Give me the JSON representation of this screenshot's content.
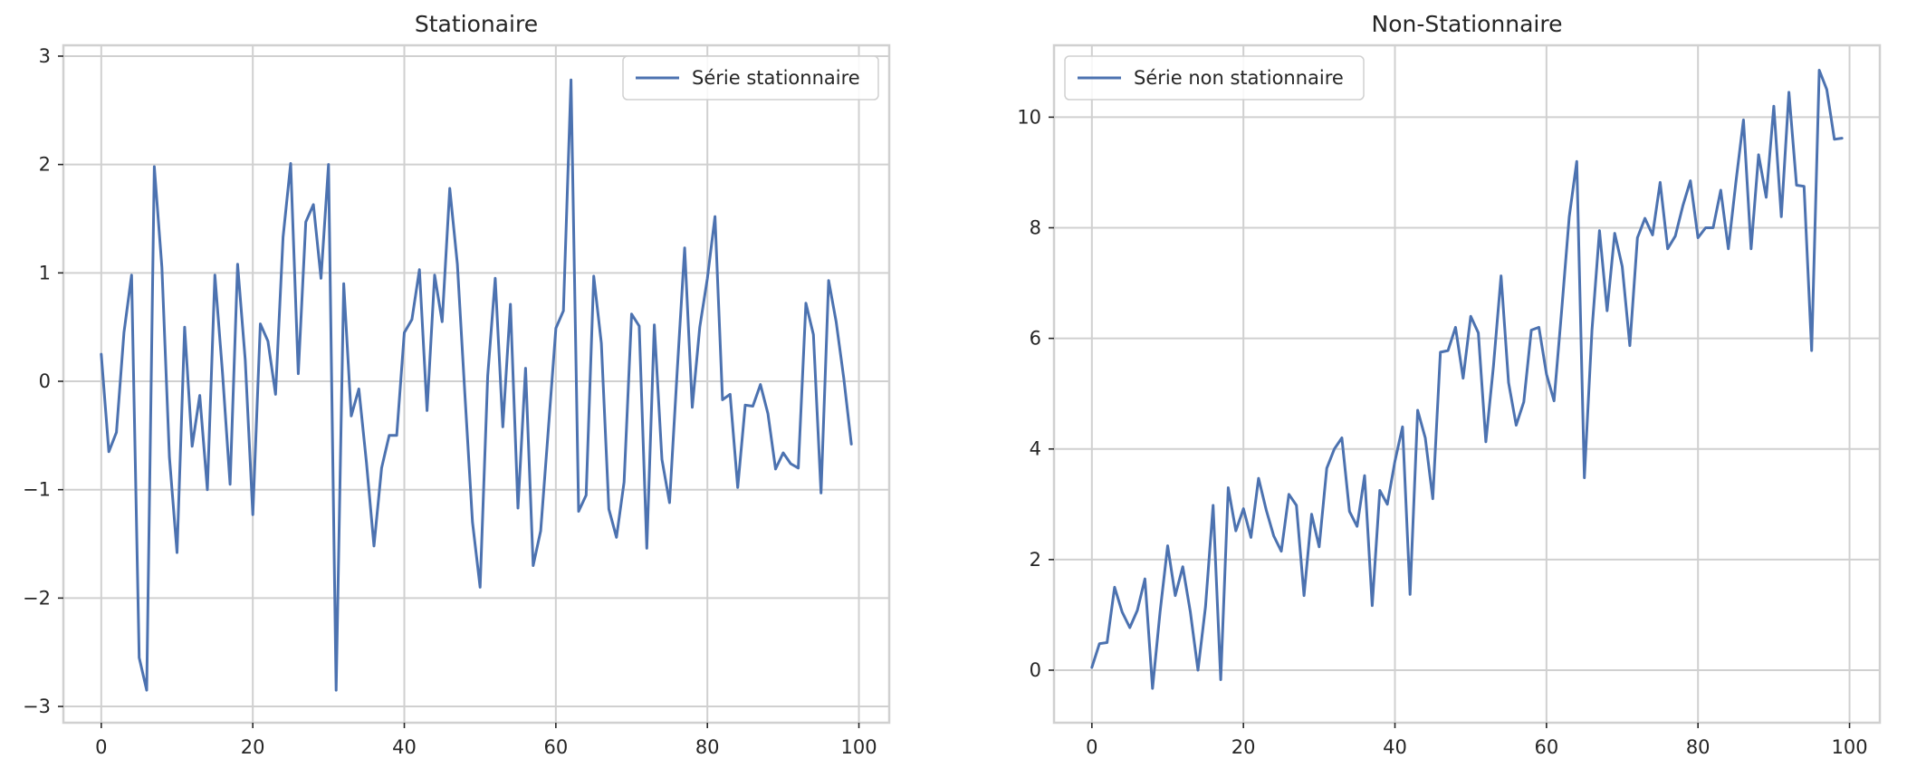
{
  "colors": {
    "series": "#4c72b0",
    "grid": "#d0d0d0",
    "text": "#262626"
  },
  "chart_data": [
    {
      "type": "line",
      "title": "Stationaire",
      "xlabel": "",
      "ylabel": "",
      "xlim": [
        -5,
        104
      ],
      "ylim": [
        -3.15,
        3.1
      ],
      "xticks": [
        0,
        20,
        40,
        60,
        80,
        100
      ],
      "yticks": [
        -3,
        -2,
        -1,
        0,
        1,
        2,
        3
      ],
      "ytick_labels": [
        "−3",
        "−2",
        "−1",
        "0",
        "1",
        "2",
        "3"
      ],
      "grid": true,
      "legend": "top-right",
      "series": [
        {
          "name": "Série stationnaire",
          "x": [
            0,
            1,
            2,
            3,
            4,
            5,
            6,
            7,
            8,
            9,
            10,
            11,
            12,
            13,
            14,
            15,
            16,
            17,
            18,
            19,
            20,
            21,
            22,
            23,
            24,
            25,
            26,
            27,
            28,
            29,
            30,
            31,
            32,
            33,
            34,
            35,
            36,
            37,
            38,
            39,
            40,
            41,
            42,
            43,
            44,
            45,
            46,
            47,
            48,
            49,
            50,
            51,
            52,
            53,
            54,
            55,
            56,
            57,
            58,
            59,
            60,
            61,
            62,
            63,
            64,
            65,
            66,
            67,
            68,
            69,
            70,
            71,
            72,
            73,
            74,
            75,
            76,
            77,
            78,
            79,
            80,
            81,
            82,
            83,
            84,
            85,
            86,
            87,
            88,
            89,
            90,
            91,
            92,
            93,
            94,
            95,
            96,
            97,
            98,
            99
          ],
          "values": [
            0.25,
            -0.65,
            -0.47,
            0.45,
            0.98,
            -2.55,
            -2.85,
            1.98,
            1.05,
            -0.7,
            -1.58,
            0.5,
            -0.6,
            -0.13,
            -1.0,
            0.98,
            0.08,
            -0.95,
            1.08,
            0.2,
            -1.23,
            0.53,
            0.37,
            -0.12,
            1.33,
            2.01,
            0.07,
            1.47,
            1.63,
            0.95,
            2.0,
            -2.85,
            0.9,
            -0.32,
            -0.07,
            -0.75,
            -1.52,
            -0.8,
            -0.5,
            -0.5,
            0.45,
            0.57,
            1.03,
            -0.27,
            0.98,
            0.55,
            1.78,
            1.08,
            -0.12,
            -1.3,
            -1.9,
            0.05,
            0.95,
            -0.42,
            0.71,
            -1.17,
            0.12,
            -1.7,
            -1.38,
            -0.45,
            0.49,
            0.65,
            2.78,
            -1.2,
            -1.05,
            0.97,
            0.35,
            -1.18,
            -1.44,
            -0.93,
            0.62,
            0.51,
            -1.54,
            0.52,
            -0.72,
            -1.12,
            0.07,
            1.23,
            -0.24,
            0.5,
            0.95,
            1.52,
            -0.17,
            -0.12,
            -0.98,
            -0.22,
            -0.23,
            -0.03,
            -0.3,
            -0.81,
            -0.66,
            -0.76,
            -0.8,
            0.72,
            0.43,
            -1.03,
            0.93,
            0.55,
            0.03,
            -0.58
          ]
        }
      ]
    },
    {
      "type": "line",
      "title": "Non-Stationnaire",
      "xlabel": "",
      "ylabel": "",
      "xlim": [
        -5,
        104
      ],
      "ylim": [
        -0.95,
        11.3
      ],
      "xticks": [
        0,
        20,
        40,
        60,
        80,
        100
      ],
      "yticks": [
        0,
        2,
        4,
        6,
        8,
        10
      ],
      "ytick_labels": [
        "0",
        "2",
        "4",
        "6",
        "8",
        "10"
      ],
      "grid": true,
      "legend": "top-left",
      "series": [
        {
          "name": "Série non stationnaire",
          "x": [
            0,
            1,
            2,
            3,
            4,
            5,
            6,
            7,
            8,
            9,
            10,
            11,
            12,
            13,
            14,
            15,
            16,
            17,
            18,
            19,
            20,
            21,
            22,
            23,
            24,
            25,
            26,
            27,
            28,
            29,
            30,
            31,
            32,
            33,
            34,
            35,
            36,
            37,
            38,
            39,
            40,
            41,
            42,
            43,
            44,
            45,
            46,
            47,
            48,
            49,
            50,
            51,
            52,
            53,
            54,
            55,
            56,
            57,
            58,
            59,
            60,
            61,
            62,
            63,
            64,
            65,
            66,
            67,
            68,
            69,
            70,
            71,
            72,
            73,
            74,
            75,
            76,
            77,
            78,
            79,
            80,
            81,
            82,
            83,
            84,
            85,
            86,
            87,
            88,
            89,
            90,
            91,
            92,
            93,
            94,
            95,
            96,
            97,
            98,
            99
          ],
          "values": [
            0.05,
            0.48,
            0.5,
            1.5,
            1.05,
            0.77,
            1.08,
            1.65,
            -0.33,
            1.05,
            2.25,
            1.35,
            1.87,
            1.05,
            0.0,
            1.15,
            2.98,
            -0.17,
            3.3,
            2.52,
            2.92,
            2.4,
            3.47,
            2.9,
            2.43,
            2.15,
            3.18,
            2.98,
            1.35,
            2.82,
            2.23,
            3.65,
            4.0,
            4.2,
            2.87,
            2.6,
            3.52,
            1.17,
            3.25,
            3.0,
            3.78,
            4.4,
            1.37,
            4.7,
            4.2,
            3.1,
            5.75,
            5.78,
            6.2,
            5.28,
            6.4,
            6.1,
            4.13,
            5.5,
            7.13,
            5.2,
            4.43,
            4.85,
            6.15,
            6.2,
            5.35,
            4.87,
            6.5,
            8.2,
            9.2,
            3.48,
            6.15,
            7.95,
            6.5,
            7.9,
            7.3,
            5.87,
            7.82,
            8.17,
            7.87,
            8.82,
            7.62,
            7.85,
            8.4,
            8.85,
            7.82,
            8.0,
            8.0,
            8.68,
            7.62,
            8.82,
            9.95,
            7.62,
            9.32,
            8.55,
            10.2,
            8.2,
            10.45,
            8.77,
            8.75,
            5.78,
            10.85,
            10.5,
            9.6,
            9.62
          ]
        }
      ]
    }
  ]
}
